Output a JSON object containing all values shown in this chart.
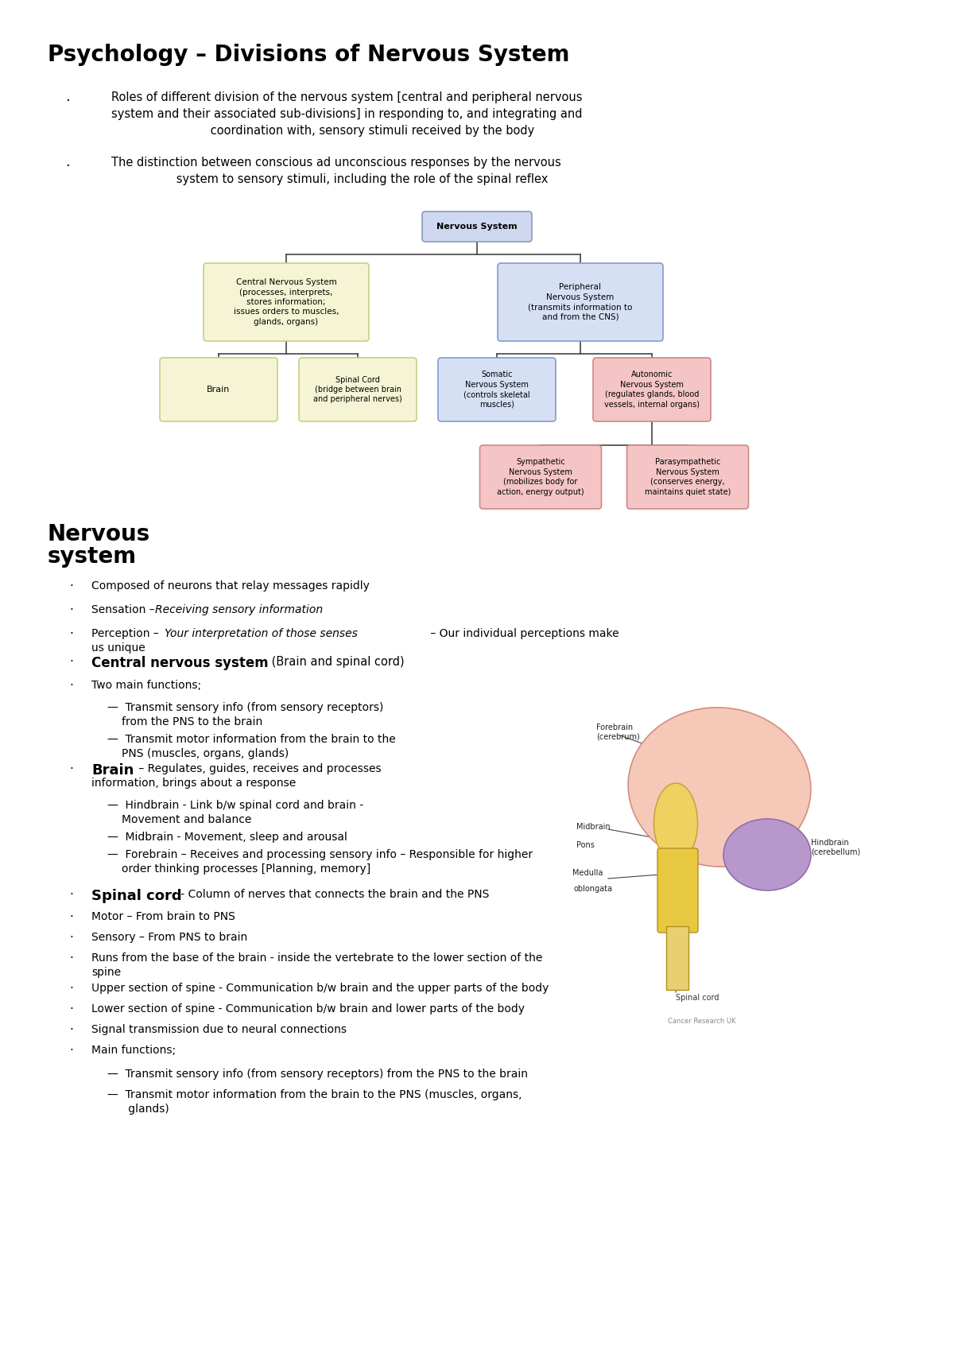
{
  "title": "Psychology – Divisions of Nervous System",
  "bg_color": "#ffffff",
  "title_font": 18,
  "bullet1": "Roles of different division of the nervous system [central and peripheral nervous\nsystem and their associated sub-divisions] in responding to, and integrating and\n              coordination with, sensory stimuli received by the body",
  "bullet2": "The distinction between conscious ad unconscious responses by the nervous\n              system to sensory stimuli, including the role of the spinal reflex",
  "diagram": {
    "root_text": "Nervous System",
    "root_color": "#d0d8f0",
    "root_border": "#8899bb",
    "level1_left_text": "Central Nervous System\n(processes, interprets,\nstores information;\nissues orders to muscles,\nglands, organs)",
    "level1_left_color": "#f5f5d5",
    "level1_left_border": "#cccc88",
    "level1_right_text": "Peripheral\nNervous System\n(transmits information to\nand from the CNS)",
    "level1_right_color": "#d5e0f5",
    "level1_right_border": "#8899cc",
    "level2_brain_text": "Brain",
    "level2_brain_color": "#f5f5d5",
    "level2_brain_border": "#cccc88",
    "level2_spinal_text": "Spinal Cord\n(bridge between brain\nand peripheral nerves)",
    "level2_spinal_color": "#f5f5d5",
    "level2_spinal_border": "#cccc88",
    "level2_somatic_text": "Somatic\nNervous System\n(controls skeletal\nmuscles)",
    "level2_somatic_color": "#d5e0f5",
    "level2_somatic_border": "#8899cc",
    "level2_autonomic_text": "Autonomic\nNervous System\n(regulates glands, blood\nvessels, internal organs)",
    "level2_autonomic_color": "#f5c5c5",
    "level2_autonomic_border": "#cc8888",
    "level3_sympathetic_text": "Sympathetic\nNervous System\n(mobilizes body for\naction, energy output)",
    "level3_sympathetic_color": "#f5c5c5",
    "level3_sympathetic_border": "#cc8888",
    "level3_parasympathetic_text": "Parasympathetic\nNervous System\n(conserves energy,\nmaintains quiet state)",
    "level3_parasympathetic_color": "#f5c5c5",
    "level3_parasympathetic_border": "#cc8888"
  }
}
